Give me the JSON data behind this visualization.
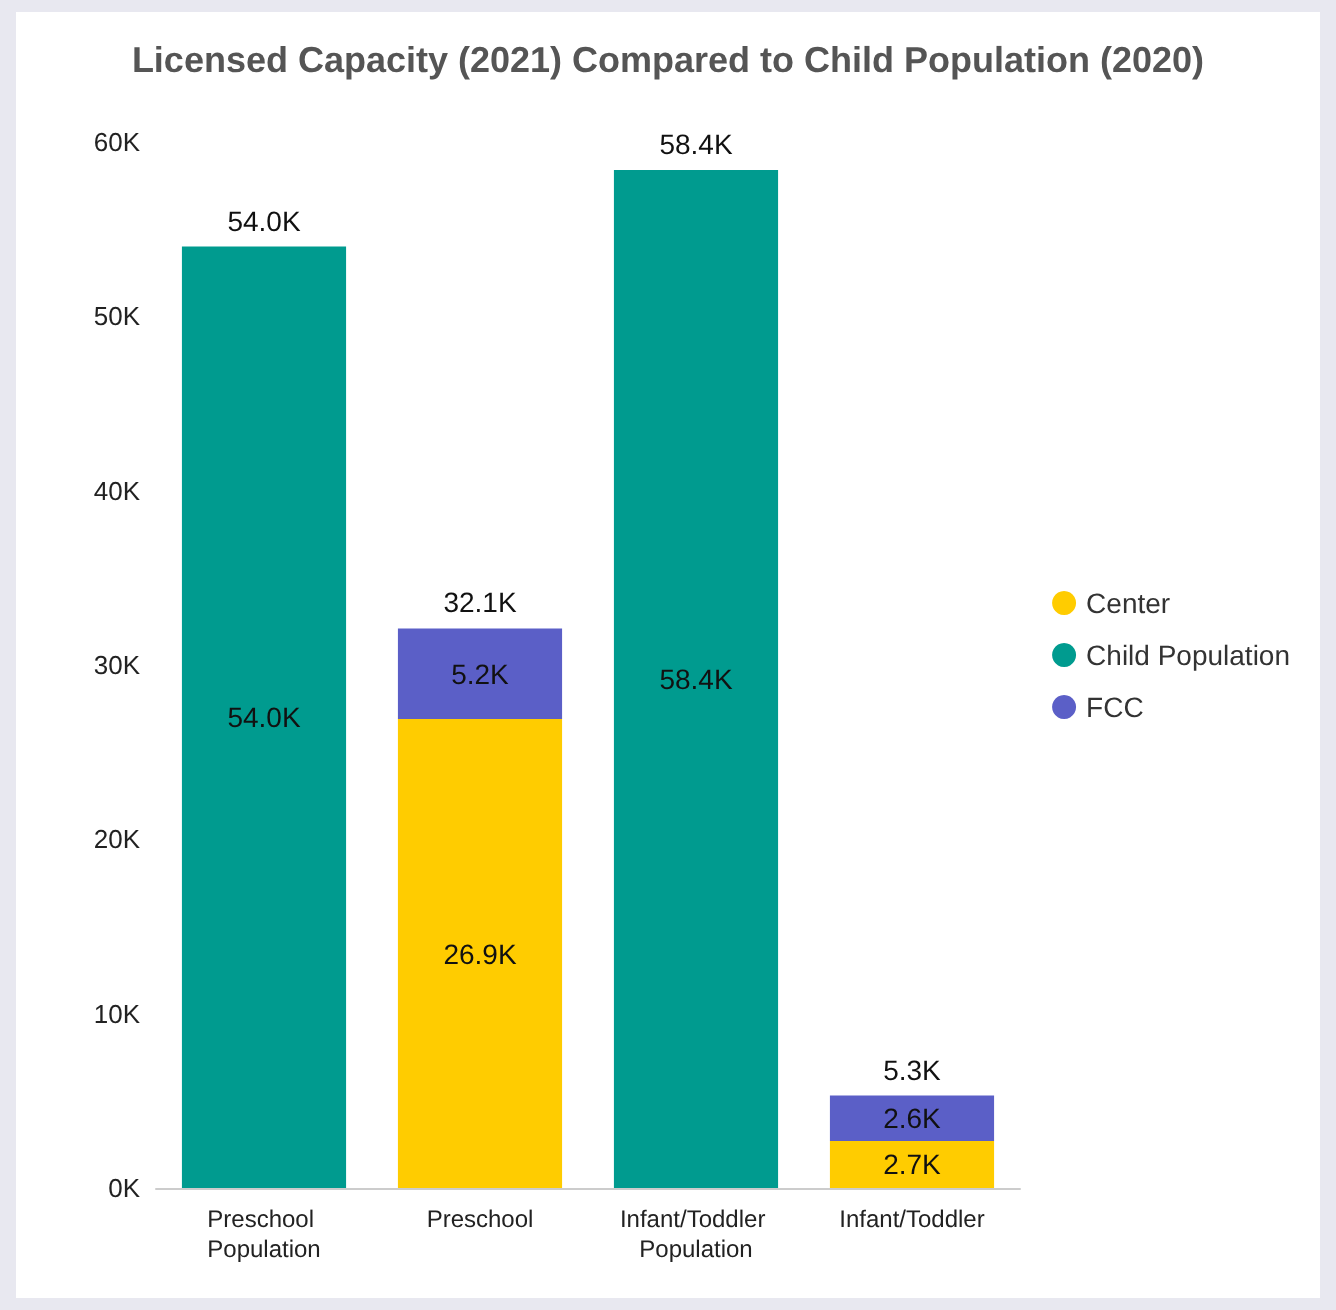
{
  "chart_data": {
    "type": "bar",
    "title": "Licensed Capacity (2021) Compared to Child Population (2020)",
    "categories": [
      "Preschool Population",
      "Preschool",
      "Infant/Toddler Population",
      "Infant/Toddler"
    ],
    "stacked": true,
    "series": [
      {
        "name": "Center",
        "color": "#ffcc00",
        "values": [
          null,
          26.9,
          null,
          2.7
        ],
        "value_labels": [
          null,
          "26.9K",
          null,
          "2.7K"
        ]
      },
      {
        "name": "Child Population",
        "color": "#009b8f",
        "values": [
          54.0,
          null,
          58.4,
          null
        ],
        "value_labels": [
          "54.0K",
          null,
          "58.4K",
          null
        ]
      },
      {
        "name": "FCC",
        "color": "#5b5fc7",
        "values": [
          null,
          5.2,
          null,
          2.6
        ],
        "value_labels": [
          null,
          "5.2K",
          null,
          "2.6K"
        ]
      }
    ],
    "totals": [
      "54.0K",
      "32.1K",
      "58.4K",
      "5.3K"
    ],
    "ylim": [
      0,
      60
    ],
    "yticks": [
      {
        "value": 0,
        "label": "0K"
      },
      {
        "value": 10,
        "label": "10K"
      },
      {
        "value": 20,
        "label": "20K"
      },
      {
        "value": 30,
        "label": "30K"
      },
      {
        "value": 40,
        "label": "40K"
      },
      {
        "value": 50,
        "label": "50K"
      },
      {
        "value": 60,
        "label": "60K"
      }
    ],
    "grid": false,
    "legend": "right"
  }
}
